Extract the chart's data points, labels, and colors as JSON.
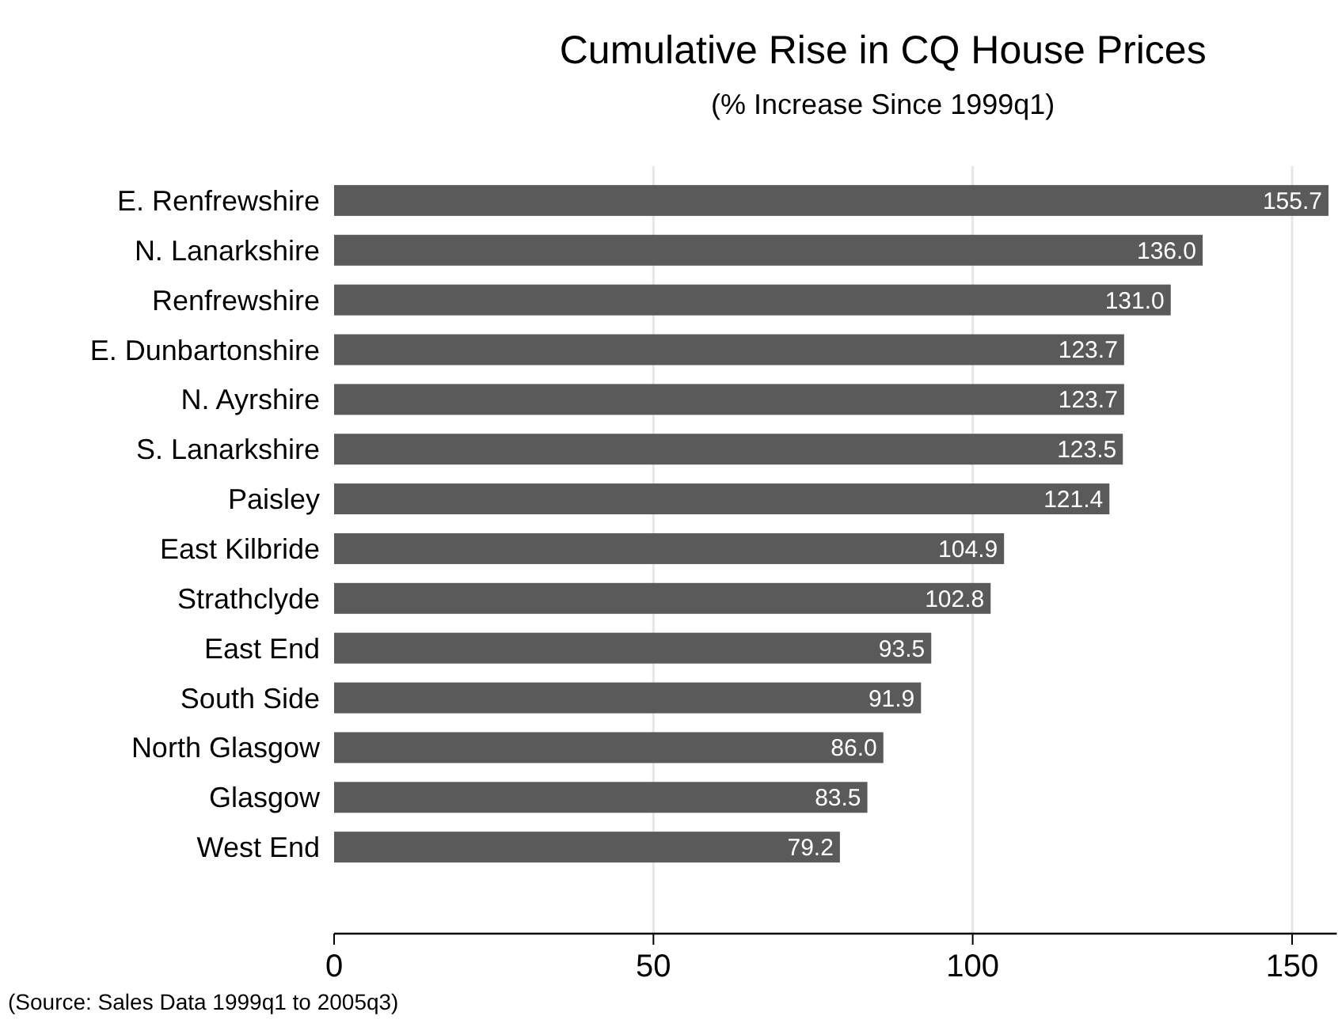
{
  "chart_data": {
    "type": "bar",
    "orientation": "horizontal",
    "title": "Cumulative Rise in CQ House Prices",
    "subtitle": "(% Increase Since 1999q1)",
    "categories": [
      "E. Renfrewshire",
      "N. Lanarkshire",
      "Renfrewshire",
      "E. Dunbartonshire",
      "N. Ayrshire",
      "S. Lanarkshire",
      "Paisley",
      "East Kilbride",
      "Strathclyde",
      "East End",
      "South Side",
      "North Glasgow",
      "Glasgow",
      "West End"
    ],
    "values": [
      155.7,
      136.0,
      131.0,
      123.7,
      123.7,
      123.5,
      121.4,
      104.9,
      102.8,
      93.5,
      91.9,
      86.0,
      83.5,
      79.2
    ],
    "value_labels": [
      "155.7",
      "136.0",
      "131.0",
      "123.7",
      "123.7",
      "123.5",
      "121.4",
      "104.9",
      "102.8",
      "93.5",
      "91.9",
      "86.0",
      "83.5",
      "79.2"
    ],
    "color": "#5a5a5a",
    "xlim": [
      0,
      157
    ],
    "xticks": [
      0,
      50,
      100,
      150
    ],
    "grid": "x",
    "annotations": [
      "(Source: Sales Data 1999q1 to 2005q3)"
    ]
  }
}
